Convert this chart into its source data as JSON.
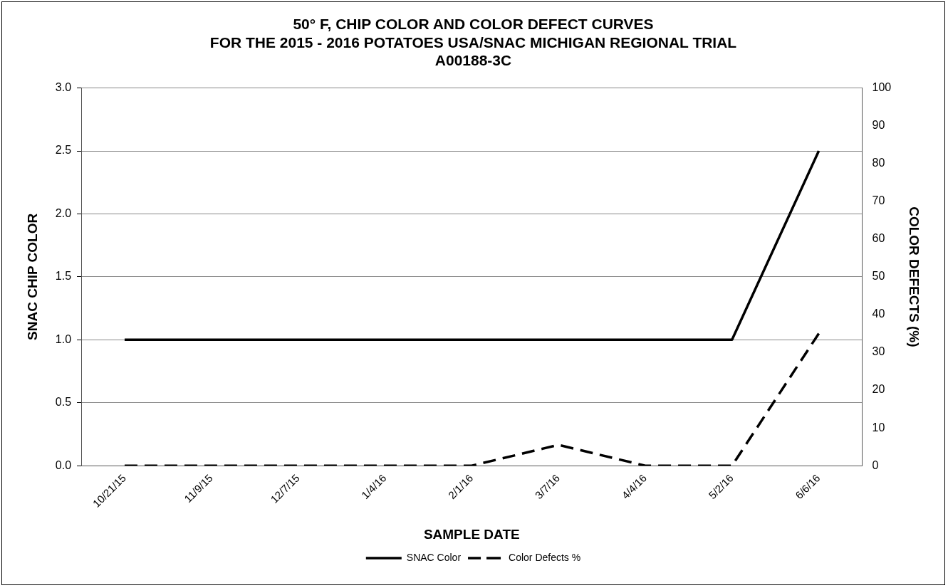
{
  "chart_data": {
    "type": "line",
    "title": "50° F, CHIP COLOR AND COLOR DEFECT CURVES\nFOR THE 2015 - 2016 POTATOES USA/SNAC MICHIGAN REGIONAL TRIAL\nA00188-3C",
    "xlabel": "SAMPLE DATE",
    "ylabel": "SNAC CHIP COLOR",
    "y2label": "COLOR DEFECTS (%)",
    "categories": [
      "10/21/15",
      "11/9/15",
      "12/7/15",
      "1/4/16",
      "2/1/16",
      "3/7/16",
      "4/4/16",
      "5/2/16",
      "6/6/16"
    ],
    "series": [
      {
        "name": "SNAC Color",
        "color": "#000000",
        "line_style": "solid",
        "values": [
          1,
          1,
          1,
          1,
          1,
          1,
          1,
          1,
          2.5
        ]
      },
      {
        "name": "Color Defects %",
        "color": "#000000",
        "line_style": "dashed",
        "axis": "y2",
        "values": [
          0,
          0,
          0,
          0,
          0,
          5.5,
          0,
          0,
          35
        ]
      }
    ],
    "ylim": [
      0,
      3
    ],
    "yticks": [
      {
        "value": 0,
        "label": "0.0"
      },
      {
        "value": 0.5,
        "label": "0.5"
      },
      {
        "value": 1,
        "label": "1.0"
      },
      {
        "value": 1.5,
        "label": "1.5"
      },
      {
        "value": 2,
        "label": "2.0"
      },
      {
        "value": 2.5,
        "label": "2.5"
      },
      {
        "value": 3,
        "label": "3.0"
      }
    ],
    "y2lim": [
      0,
      100
    ],
    "y2ticks": [
      0,
      10,
      20,
      30,
      40,
      50,
      60,
      70,
      80,
      90,
      100
    ],
    "grid": "y",
    "legend": "bottom",
    "marker": "none"
  }
}
